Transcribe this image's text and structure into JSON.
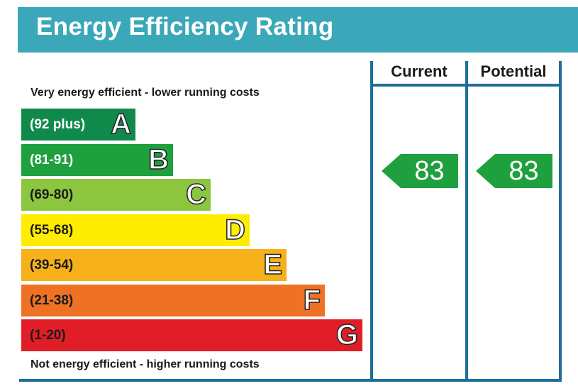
{
  "title": "Energy Efficiency Rating",
  "columns": {
    "current": "Current",
    "potential": "Potential"
  },
  "captions": {
    "top": "Very energy efficient - lower running costs",
    "bottom": "Not energy efficient - higher running costs"
  },
  "chart_data": {
    "type": "bar",
    "categories": [
      "A",
      "B",
      "C",
      "D",
      "E",
      "F",
      "G"
    ],
    "ranges": [
      "(92 plus)",
      "(81-91)",
      "(69-80)",
      "(55-68)",
      "(39-54)",
      "(21-38)",
      "(1-20)"
    ],
    "colors": [
      "#0f8a4a",
      "#1fa03f",
      "#8cc63f",
      "#ffed00",
      "#f6b01a",
      "#ee7124",
      "#e11e27"
    ],
    "range_text_colors": [
      "#ffffff",
      "#ffffff",
      "#1a1a1a",
      "#1a1a1a",
      "#1a1a1a",
      "#1a1a1a",
      "#1a1a1a"
    ],
    "current": {
      "value": 83,
      "band": "B",
      "color": "#1fa03f"
    },
    "potential": {
      "value": 83,
      "band": "B",
      "color": "#1fa03f"
    }
  }
}
